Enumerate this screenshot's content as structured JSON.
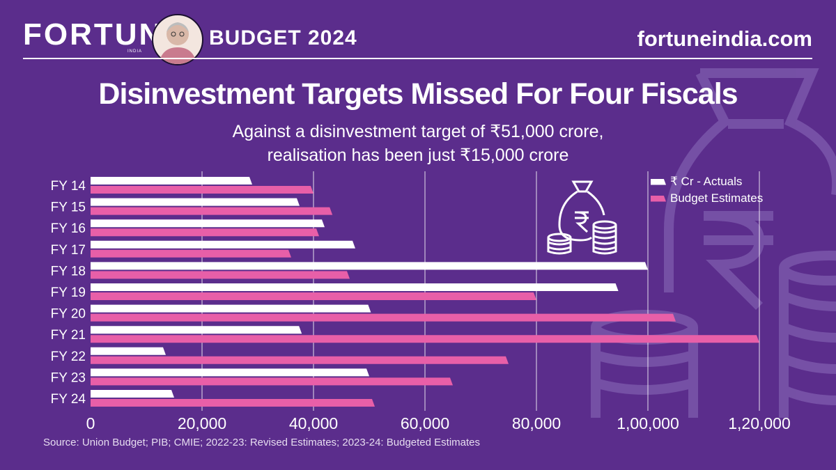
{
  "header": {
    "logo": "FORTUNE",
    "logo_sub": "INDIA",
    "edition": "BUDGET 2024",
    "site": "fortuneindia.com"
  },
  "title": "Disinvestment Targets Missed For Four Fiscals",
  "subtitle_line1": "Against a disinvestment target of ₹51,000 crore,",
  "subtitle_line2": "realisation has been just ₹15,000 crore",
  "source": "Source: Union Budget; PIB; CMIE; 2022-23: Revised Estimates; 2023-24: Budgeted Estimates",
  "icons": [
    "money-bag-icon",
    "rupee-icon",
    "coin-stack-icon",
    "portrait-icon"
  ],
  "colors": {
    "background": "#5b2d8c",
    "actuals": "#ffffff",
    "budget": "#e85fa8",
    "grid": "#ffffff"
  },
  "chart_data": {
    "type": "bar",
    "orientation": "horizontal",
    "categories": [
      "FY 14",
      "FY 15",
      "FY 16",
      "FY 17",
      "FY 18",
      "FY 19",
      "FY 20",
      "FY 21",
      "FY 22",
      "FY 23",
      "FY 24"
    ],
    "series": [
      {
        "name": "₹ Cr - Actuals",
        "values": [
          29000,
          37500,
          42000,
          47500,
          100000,
          94700,
          50300,
          37900,
          13500,
          50000,
          15000
        ]
      },
      {
        "name": "Budget Estimates",
        "values": [
          40000,
          43400,
          41000,
          36000,
          46500,
          80000,
          105000,
          120000,
          75000,
          65000,
          51000
        ]
      }
    ],
    "xlim": [
      0,
      120000
    ],
    "x_ticks": [
      0,
      20000,
      40000,
      60000,
      80000,
      100000,
      120000
    ],
    "x_tick_labels": [
      "0",
      "20,000",
      "40,000",
      "60,000",
      "80,000",
      "1,00,000",
      "1,20,000"
    ],
    "grid": true,
    "legend_position": "top-right"
  }
}
